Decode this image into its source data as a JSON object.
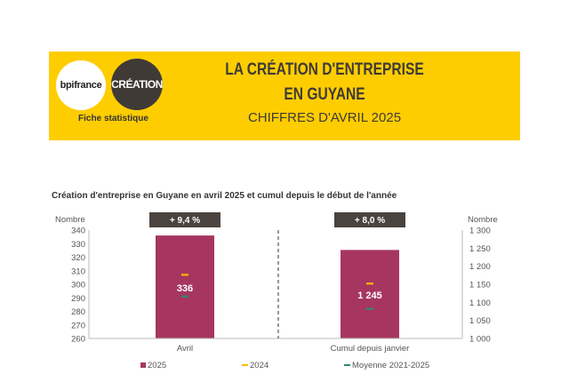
{
  "header": {
    "logo_bpi": "bpifrance",
    "logo_creation": "CRÉATION",
    "fiche": "Fiche statistique",
    "title_line1": "LA CRÉATION D'ENTREPRISE",
    "title_line2": "EN GUYANE",
    "subtitle": "CHIFFRES D'AVRIL 2025"
  },
  "colors": {
    "banner": "#fecd00",
    "bar_2025": "#a6365f",
    "mark_2024": "#fbb800",
    "mark_moyenne": "#2e8a6e",
    "badge": "#4a4340"
  },
  "chart_data": [
    {
      "type": "bar",
      "title": "Création d'entreprise en Guyane en avril 2025 et cumul depuis le début de l'année",
      "categories": [
        "Avril"
      ],
      "ylabel": "Nombre",
      "ylim": [
        260,
        340
      ],
      "yticks": [
        260,
        270,
        280,
        290,
        300,
        310,
        320,
        330,
        340
      ],
      "axis": "left",
      "series": [
        {
          "name": "2025",
          "type": "bar",
          "values": [
            336
          ],
          "labels": [
            "336"
          ]
        },
        {
          "name": "2024",
          "type": "marker",
          "values": [
            307
          ]
        },
        {
          "name": "Moyenne 2021-2025",
          "type": "marker",
          "values": [
            291
          ]
        }
      ],
      "badge": "+ 9,4 %"
    },
    {
      "type": "bar",
      "categories": [
        "Cumul depuis janvier"
      ],
      "ylabel": "Nombre",
      "ylim": [
        1000,
        1300
      ],
      "yticks": [
        1000,
        1050,
        1100,
        1150,
        1200,
        1250,
        1300
      ],
      "yticklabels": [
        "1 000",
        "1 050",
        "1 100",
        "1 150",
        "1 200",
        "1 250",
        "1 300"
      ],
      "axis": "right",
      "series": [
        {
          "name": "2025",
          "type": "bar",
          "values": [
            1245
          ],
          "labels": [
            "1 245"
          ]
        },
        {
          "name": "2024",
          "type": "marker",
          "values": [
            1152
          ]
        },
        {
          "name": "Moyenne 2021-2025",
          "type": "marker",
          "values": [
            1082
          ]
        }
      ],
      "badge": "+ 8,0 %"
    }
  ],
  "legend": [
    "2025",
    "2024",
    "Moyenne 2021-2025"
  ]
}
